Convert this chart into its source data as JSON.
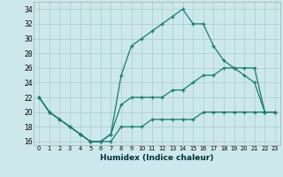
{
  "xlabel": "Humidex (Indice chaleur)",
  "bg_color": "#cce8ec",
  "grid_color": "#aacccc",
  "line_color": "#1a7a6e",
  "xlim": [
    -0.5,
    23.5
  ],
  "ylim": [
    15.5,
    35.0
  ],
  "xticks": [
    0,
    1,
    2,
    3,
    4,
    5,
    6,
    7,
    8,
    9,
    10,
    11,
    12,
    13,
    14,
    15,
    16,
    17,
    18,
    19,
    20,
    21,
    22,
    23
  ],
  "yticks": [
    16,
    18,
    20,
    22,
    24,
    26,
    28,
    30,
    32,
    34
  ],
  "line1_x": [
    0,
    1,
    2,
    3,
    4,
    5,
    6,
    7,
    8,
    9,
    10,
    11,
    12,
    13,
    14,
    15,
    16,
    17,
    18,
    19,
    20,
    21,
    22,
    23
  ],
  "line1_y": [
    22,
    20,
    19,
    18,
    17,
    16,
    16,
    17,
    25,
    29,
    30,
    31,
    32,
    33,
    34,
    32,
    32,
    29,
    27,
    26,
    25,
    24,
    20,
    20
  ],
  "line2_x": [
    0,
    1,
    2,
    3,
    4,
    5,
    6,
    7,
    8,
    9,
    10,
    11,
    12,
    13,
    14,
    15,
    16,
    17,
    18,
    19,
    20,
    21,
    22,
    23
  ],
  "line2_y": [
    22,
    20,
    19,
    18,
    17,
    16,
    16,
    17,
    21,
    22,
    22,
    22,
    22,
    23,
    23,
    24,
    25,
    25,
    26,
    26,
    26,
    26,
    20,
    20
  ],
  "line3_x": [
    0,
    1,
    2,
    3,
    4,
    5,
    6,
    7,
    8,
    9,
    10,
    11,
    12,
    13,
    14,
    15,
    16,
    17,
    18,
    19,
    20,
    21,
    22,
    23
  ],
  "line3_y": [
    22,
    20,
    19,
    18,
    17,
    16,
    16,
    16,
    18,
    18,
    18,
    19,
    19,
    19,
    19,
    19,
    20,
    20,
    20,
    20,
    20,
    20,
    20,
    20
  ]
}
